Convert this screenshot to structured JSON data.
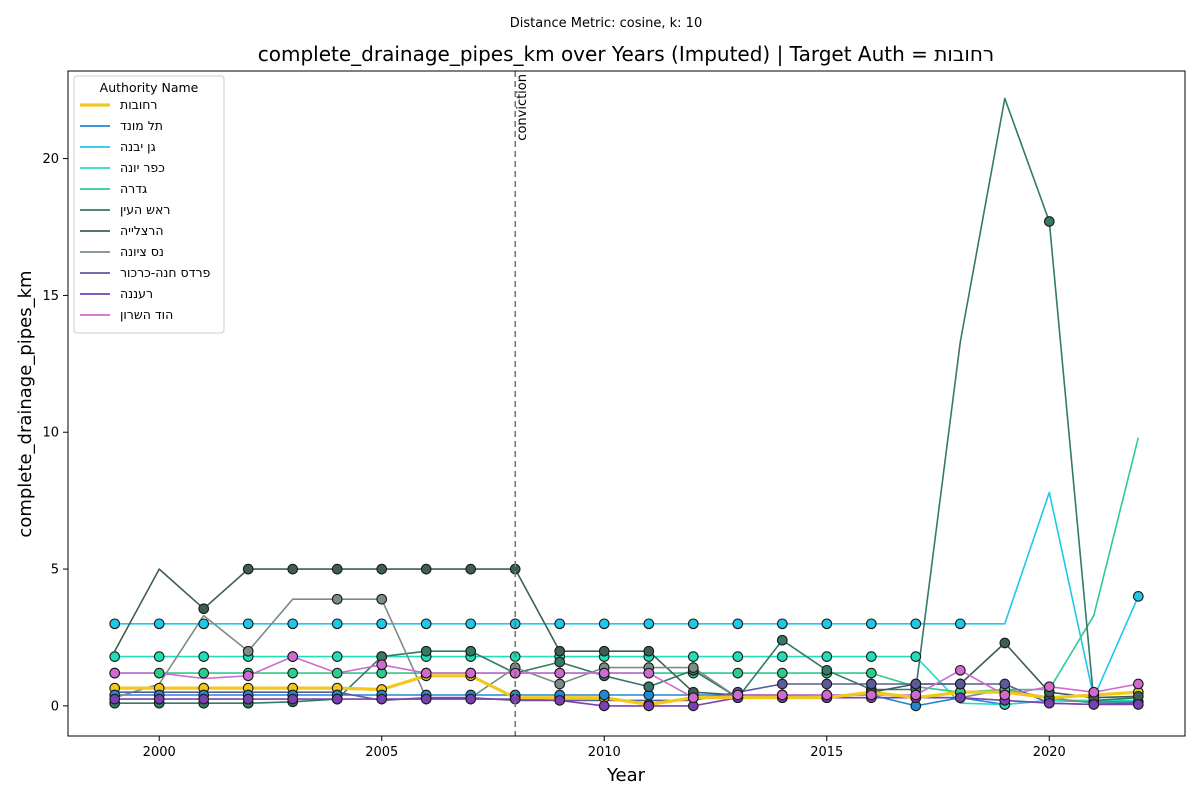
{
  "chart_data": {
    "type": "line",
    "suptitle": "Distance Metric: cosine, k: 10",
    "title": "complete_drainage_pipes_km over Years (Imputed) | Target Auth = רחובות",
    "xlabel": "Year",
    "ylabel": "complete_drainage_pipes_km",
    "xlim": [
      1997.95,
      2023.05
    ],
    "ylim": [
      -1.1,
      23.2
    ],
    "xticks": [
      2000,
      2005,
      2010,
      2015,
      2020
    ],
    "yticks": [
      0,
      5,
      10,
      15,
      20
    ],
    "grid": false,
    "legend": {
      "title": "Authority Name",
      "position": "top-left"
    },
    "annotation": {
      "x": 2008,
      "label": "conviction",
      "style": "dashed",
      "color": "#777777"
    },
    "years": [
      1999,
      2000,
      2001,
      2002,
      2003,
      2004,
      2005,
      2006,
      2007,
      2008,
      2009,
      2010,
      2011,
      2012,
      2013,
      2014,
      2015,
      2016,
      2017,
      2018,
      2019,
      2020,
      2021,
      2022
    ],
    "series": [
      {
        "name": "רחובות",
        "color": "#f2c91a",
        "target": true,
        "values": [
          0.65,
          0.65,
          0.65,
          0.65,
          0.65,
          0.65,
          0.6,
          1.1,
          1.1,
          0.3,
          0.3,
          0.3,
          0.05,
          0.3,
          0.3,
          0.3,
          0.3,
          0.5,
          0.3,
          0.5,
          0.5,
          0.3,
          0.4,
          0.5
        ],
        "markers": [
          0,
          1,
          2,
          3,
          4,
          5,
          6,
          7,
          8,
          9,
          10,
          11,
          12,
          13,
          14,
          15,
          16,
          17,
          18,
          19,
          20,
          21,
          22,
          23
        ]
      },
      {
        "name": "תל מונד",
        "color": "#2188d4",
        "values": [
          0.4,
          0.4,
          0.4,
          0.4,
          0.4,
          0.4,
          0.4,
          0.4,
          0.4,
          0.4,
          0.4,
          0.4,
          0.4,
          0.4,
          0.4,
          0.4,
          0.4,
          0.4,
          0.0,
          0.3,
          0.05,
          0.2,
          0.15,
          0.15
        ],
        "markers": [
          0,
          1,
          2,
          3,
          4,
          5,
          6,
          7,
          8,
          9,
          10,
          11,
          12,
          13,
          14,
          15,
          16,
          17,
          18,
          19,
          20,
          21,
          22,
          23
        ]
      },
      {
        "name": "גן יבנה",
        "color": "#1fc7e8",
        "values": [
          3.0,
          3.0,
          3.0,
          3.0,
          3.0,
          3.0,
          3.0,
          3.0,
          3.0,
          3.0,
          3.0,
          3.0,
          3.0,
          3.0,
          3.0,
          3.0,
          3.0,
          3.0,
          3.0,
          3.0,
          3.0,
          7.8,
          0.3,
          4.0
        ],
        "markers": [
          0,
          1,
          2,
          3,
          4,
          5,
          6,
          7,
          8,
          9,
          10,
          11,
          12,
          13,
          14,
          15,
          16,
          17,
          18,
          19,
          23
        ]
      },
      {
        "name": "כפר יונה",
        "color": "#22ddb9",
        "values": [
          1.8,
          1.8,
          1.8,
          1.8,
          1.8,
          1.8,
          1.8,
          1.8,
          1.8,
          1.8,
          1.8,
          1.8,
          1.8,
          1.8,
          1.8,
          1.8,
          1.8,
          1.8,
          1.8,
          0.1,
          0.05,
          0.2,
          0.2,
          0.2
        ],
        "markers": [
          0,
          1,
          2,
          3,
          4,
          5,
          6,
          7,
          8,
          9,
          10,
          11,
          12,
          13,
          14,
          15,
          16,
          17,
          18,
          20
        ]
      },
      {
        "name": "גדרה",
        "color": "#2dcc8c",
        "values": [
          1.2,
          1.2,
          1.2,
          1.2,
          1.2,
          1.2,
          1.2,
          1.2,
          1.2,
          1.2,
          1.2,
          1.2,
          1.2,
          1.2,
          1.2,
          1.2,
          1.2,
          1.2,
          0.7,
          0.5,
          0.6,
          0.6,
          3.3,
          9.8
        ],
        "markers": [
          0,
          1,
          2,
          3,
          4,
          5,
          6,
          7,
          8,
          9,
          10,
          11,
          12,
          13,
          14,
          15,
          16,
          17,
          18,
          19,
          20
        ]
      },
      {
        "name": "ראש העין",
        "color": "#347a66",
        "values": [
          0.1,
          0.1,
          0.1,
          0.1,
          0.15,
          0.25,
          1.8,
          2.0,
          2.0,
          1.2,
          1.6,
          1.1,
          0.7,
          1.3,
          0.3,
          2.4,
          1.3,
          0.6,
          0.6,
          13.3,
          22.2,
          17.7,
          0.2,
          0.3
        ],
        "markers": [
          0,
          1,
          2,
          3,
          4,
          5,
          6,
          7,
          8,
          9,
          10,
          11,
          12,
          13,
          14,
          15,
          16,
          17,
          18,
          21
        ]
      },
      {
        "name": "הרצלייה",
        "color": "#3f5e52",
        "values": [
          2.0,
          5.0,
          3.55,
          5.0,
          5.0,
          5.0,
          5.0,
          5.0,
          5.0,
          5.0,
          2.0,
          2.0,
          2.0,
          0.5,
          0.4,
          0.4,
          0.3,
          0.5,
          0.8,
          0.8,
          2.3,
          0.5,
          0.3,
          0.35
        ],
        "markers": [
          2,
          3,
          4,
          5,
          6,
          7,
          8,
          9,
          10,
          11,
          12,
          13,
          14,
          15,
          16,
          17,
          18,
          19,
          20,
          21,
          22,
          23
        ]
      },
      {
        "name": "נס ציונה",
        "color": "#7b8c87",
        "values": [
          0.3,
          0.8,
          3.3,
          2.0,
          3.9,
          3.9,
          3.9,
          0.3,
          0.3,
          1.4,
          0.8,
          1.4,
          1.4,
          1.4,
          0.3,
          0.4,
          0.3,
          0.3,
          0.3,
          0.3,
          0.6,
          0.3,
          0.1,
          0.1
        ],
        "markers": [
          3,
          5,
          6,
          9,
          10,
          11,
          12,
          13
        ]
      },
      {
        "name": "פרדס חנה-כרכור",
        "color": "#5b5a9b",
        "values": [
          0.5,
          0.5,
          0.5,
          0.5,
          0.5,
          0.5,
          0.2,
          0.3,
          0.3,
          0.2,
          0.2,
          0.2,
          0.2,
          0.2,
          0.5,
          0.8,
          0.8,
          0.8,
          0.8,
          0.8,
          0.8,
          0.1,
          0.05,
          0.1
        ],
        "markers": [
          14,
          15,
          16,
          17,
          18,
          19,
          20
        ]
      },
      {
        "name": "רעננה",
        "color": "#7a3fb0",
        "values": [
          0.25,
          0.25,
          0.25,
          0.25,
          0.25,
          0.25,
          0.25,
          0.25,
          0.25,
          0.25,
          0.2,
          0.0,
          0.0,
          0.0,
          0.3,
          0.3,
          0.3,
          0.3,
          0.3,
          0.3,
          0.2,
          0.1,
          0.05,
          0.05
        ],
        "markers": [
          0,
          1,
          2,
          3,
          4,
          5,
          6,
          7,
          8,
          9,
          10,
          11,
          12,
          13,
          14,
          15,
          16,
          17,
          18,
          19,
          20,
          21,
          22,
          23
        ]
      },
      {
        "name": "הוד השרון",
        "color": "#d06ad0",
        "values": [
          1.2,
          1.2,
          1.0,
          1.1,
          1.8,
          1.2,
          1.5,
          1.2,
          1.2,
          1.2,
          1.2,
          1.2,
          1.2,
          0.3,
          0.4,
          0.4,
          0.4,
          0.4,
          0.4,
          1.3,
          0.4,
          0.7,
          0.5,
          0.8
        ],
        "markers": [
          0,
          3,
          4,
          6,
          7,
          8,
          9,
          10,
          11,
          12,
          13,
          14,
          15,
          16,
          17,
          18,
          19,
          20,
          21,
          22,
          23
        ]
      }
    ]
  }
}
